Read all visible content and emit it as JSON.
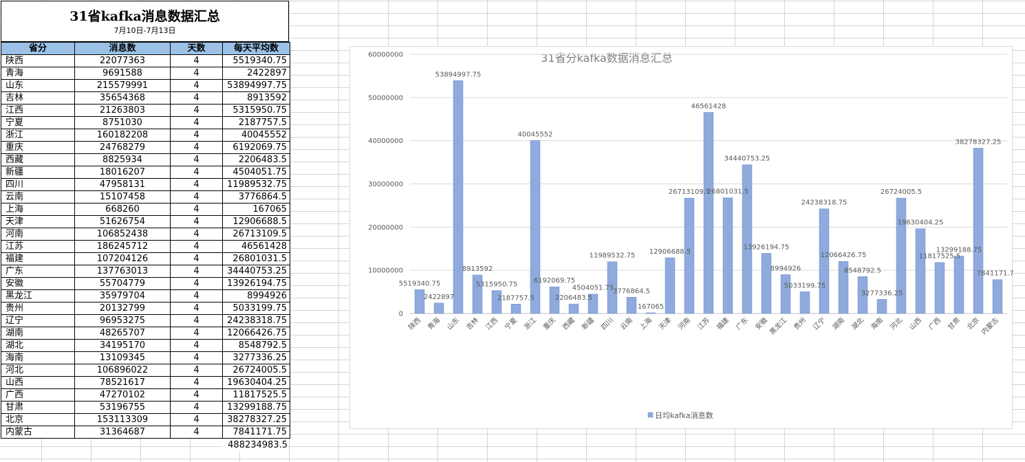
{
  "title": "31省kafka消息数据汇总",
  "subtitle": "7月10日-7月13日",
  "table": {
    "headers": [
      "省分",
      "消息数",
      "天数",
      "每天平均数"
    ],
    "rows": [
      [
        "陕西",
        "22077363",
        "4",
        "5519340.75"
      ],
      [
        "青海",
        "9691588",
        "4",
        "2422897"
      ],
      [
        "山东",
        "215579991",
        "4",
        "53894997.75"
      ],
      [
        "吉林",
        "35654368",
        "4",
        "8913592"
      ],
      [
        "江西",
        "21263803",
        "4",
        "5315950.75"
      ],
      [
        "宁夏",
        "8751030",
        "4",
        "2187757.5"
      ],
      [
        "浙江",
        "160182208",
        "4",
        "40045552"
      ],
      [
        "重庆",
        "24768279",
        "4",
        "6192069.75"
      ],
      [
        "西藏",
        "8825934",
        "4",
        "2206483.5"
      ],
      [
        "新疆",
        "18016207",
        "4",
        "4504051.75"
      ],
      [
        "四川",
        "47958131",
        "4",
        "11989532.75"
      ],
      [
        "云南",
        "15107458",
        "4",
        "3776864.5"
      ],
      [
        "上海",
        "668260",
        "4",
        "167065"
      ],
      [
        "天津",
        "51626754",
        "4",
        "12906688.5"
      ],
      [
        "河南",
        "106852438",
        "4",
        "26713109.5"
      ],
      [
        "江苏",
        "186245712",
        "4",
        "46561428"
      ],
      [
        "福建",
        "107204126",
        "4",
        "26801031.5"
      ],
      [
        "广东",
        "137763013",
        "4",
        "34440753.25"
      ],
      [
        "安徽",
        "55704779",
        "4",
        "13926194.75"
      ],
      [
        "黑龙江",
        "35979704",
        "4",
        "8994926"
      ],
      [
        "贵州",
        "20132799",
        "4",
        "5033199.75"
      ],
      [
        "辽宁",
        "96953275",
        "4",
        "24238318.75"
      ],
      [
        "湖南",
        "48265707",
        "4",
        "12066426.75"
      ],
      [
        "湖北",
        "34195170",
        "4",
        "8548792.5"
      ],
      [
        "海南",
        "13109345",
        "4",
        "3277336.25"
      ],
      [
        "河北",
        "106896022",
        "4",
        "26724005.5"
      ],
      [
        "山西",
        "78521617",
        "4",
        "19630404.25"
      ],
      [
        "广西",
        "47270102",
        "4",
        "11817525.5"
      ],
      [
        "甘肃",
        "53196755",
        "4",
        "13299188.75"
      ],
      [
        "北京",
        "153113309",
        "4",
        "38278327.25"
      ],
      [
        "内蒙古",
        "31364687",
        "4",
        "7841171.75"
      ]
    ],
    "total": "488234983.5"
  },
  "chart_data": {
    "type": "bar",
    "title": "31省分kafka数据消息汇总",
    "categories": [
      "陕西",
      "青海",
      "山东",
      "吉林",
      "江西",
      "宁夏",
      "浙江",
      "重庆",
      "西藏",
      "新疆",
      "四川",
      "云南",
      "上海",
      "天津",
      "河南",
      "江苏",
      "福建",
      "广东",
      "安徽",
      "黑龙江",
      "贵州",
      "辽宁",
      "湖南",
      "湖北",
      "海南",
      "河北",
      "山西",
      "广西",
      "甘肃",
      "北京",
      "内蒙古"
    ],
    "series": [
      {
        "name": "日均kafka消息数",
        "values": [
          5519340.75,
          2422897,
          53894997.75,
          8913592,
          5315950.75,
          2187757.5,
          40045552,
          6192069.75,
          2206483.5,
          4504051.75,
          11989532.75,
          3776864.5,
          167065,
          12906688.5,
          26713109.5,
          46561428,
          26801031.5,
          34440753.25,
          13926194.75,
          8994926,
          5033199.75,
          24238318.75,
          12066426.75,
          8548792.5,
          3277336.25,
          26724005.5,
          19630404.25,
          11817525.5,
          13299188.75,
          38278327.25,
          7841171.75
        ],
        "labels": [
          "5519340.75",
          "2422897",
          "53894997.75",
          "8913592",
          "5315950.75",
          "2187757.5",
          "40045552",
          "6192069.75",
          "2206483.5",
          "4504051.75",
          "11989532.75",
          "3776864.5",
          "167065",
          "12906688.5",
          "26713109.5",
          "46561428",
          "26801031.5",
          "34440753.25",
          "13926194.75",
          "8994926",
          "5033199.75",
          "24238318.75",
          "12066426.75",
          "8548792.5",
          "3277336.25",
          "26724005.5",
          "19630404.25",
          "11817525.5",
          "13299188.75",
          "38278327.25",
          "7841171.75"
        ]
      }
    ],
    "ylim": [
      0,
      60000000
    ],
    "yticks": [
      "0",
      "10000000",
      "20000000",
      "30000000",
      "40000000",
      "50000000",
      "60000000"
    ],
    "grid": true,
    "legend": "bottom",
    "bar_color": "#8faadc"
  }
}
